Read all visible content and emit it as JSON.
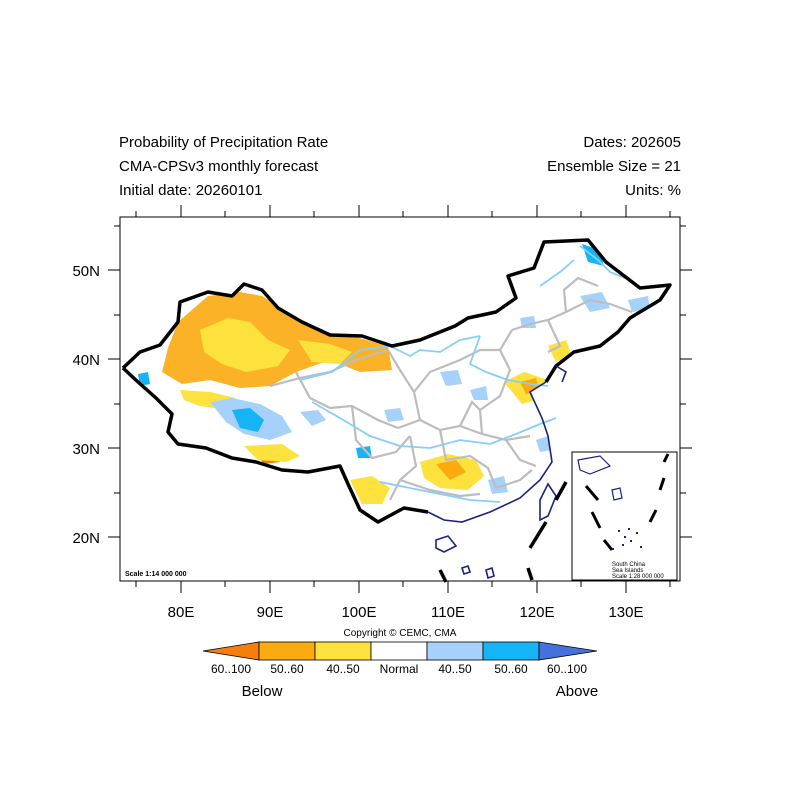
{
  "header": {
    "title": "Probability of Precipitation Rate",
    "model": "CMA-CPSv3 monthly forecast",
    "initial_date": "Initial date: 20260101",
    "dates": "Dates: 202605",
    "ensemble": "Ensemble Size = 21",
    "units": "Units: %"
  },
  "map": {
    "lat_labels": [
      "50N",
      "40N",
      "30N",
      "20N"
    ],
    "lon_labels": [
      "80E",
      "90E",
      "100E",
      "110E",
      "120E",
      "130E"
    ],
    "scale_main": "Scale 1:14 000 000",
    "inset_caption": [
      "South China",
      "Sea Islands",
      "Scale 1:28 000 000"
    ],
    "copyright": "Copyright © CEMC, CMA"
  },
  "legend": {
    "labels": [
      "60..100",
      "50..60",
      "40..50",
      "Normal",
      "40..50",
      "50..60",
      "60..100"
    ],
    "below": "Below",
    "above": "Above",
    "colors": [
      "#f57e0c",
      "#fbaa10",
      "#fde23d",
      "#ffffff",
      "#a6d1fb",
      "#14b4f6",
      "#4671dd"
    ]
  }
}
